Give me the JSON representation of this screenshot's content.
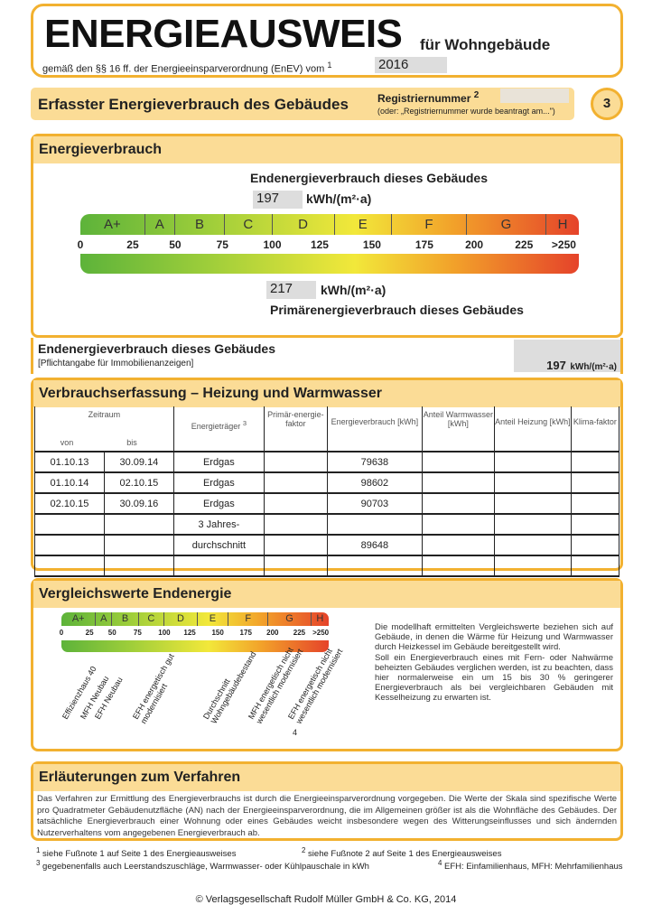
{
  "header": {
    "title": "ENERGIEAUSWEIS",
    "subtitle": "für Wohngebäude",
    "regulation": "gemäß den §§ 16 ff. der Energieeinsparverordnung (EnEV) vom",
    "regulation_sup": "1",
    "year": "2016"
  },
  "bar": {
    "title": "Erfasster Energieverbrauch des Gebäudes",
    "reg_label": "Registriernummer",
    "reg_sup": "2",
    "reg_note": "(oder: „Registriernummer wurde beantragt am...\")",
    "page": "3"
  },
  "energy": {
    "title": "Energieverbrauch",
    "end_label": "Endenergieverbrauch dieses Gebäudes",
    "end_value": "197",
    "unit": "kWh/(m²·a)",
    "primary_value": "217",
    "primary_label": "Primärenergieverbrauch dieses Gebäudes",
    "classes": [
      "A+",
      "A",
      "B",
      "C",
      "D",
      "E",
      "F",
      "G",
      "H"
    ],
    "ticks": [
      "0",
      "25",
      "50",
      "75",
      "100",
      "125",
      "150",
      "175",
      "200",
      "225",
      ">250"
    ]
  },
  "ende": {
    "title": "Endenergieverbrauch dieses Gebäudes",
    "note": "[Pflichtangabe für Immobilienanzeigen]",
    "value": "197",
    "unit": "kWh/(m²·a)"
  },
  "table": {
    "title": "Verbrauchserfassung – Heizung und Warmwasser",
    "headers": {
      "zeitraum": "Zeitraum",
      "von": "von",
      "bis": "bis",
      "traeger": "Energieträger",
      "traeger_sup": "3",
      "primaer": "Primär-energie-faktor",
      "verbrauch": "Energieverbrauch [kWh]",
      "warmwasser": "Anteil Warmwasser [kWh]",
      "heizung": "Anteil Heizung [kWh]",
      "klima": "Klima-faktor"
    },
    "rows": [
      {
        "von": "01.10.13",
        "bis": "30.09.14",
        "traeger": "Erdgas",
        "verbrauch": "79638"
      },
      {
        "von": "01.10.14",
        "bis": "02.10.15",
        "traeger": "Erdgas",
        "verbrauch": "98602"
      },
      {
        "von": "02.10.15",
        "bis": "30.09.16",
        "traeger": "Erdgas",
        "verbrauch": "90703"
      },
      {
        "von": "",
        "bis": "",
        "traeger": "3 Jahres-",
        "verbrauch": ""
      },
      {
        "von": "",
        "bis": "",
        "traeger": "durchschnitt",
        "verbrauch": "89648"
      },
      {
        "von": "",
        "bis": "",
        "traeger": "",
        "verbrauch": ""
      }
    ]
  },
  "vergleich": {
    "title": "Vergleichswerte Endenergie",
    "labels": [
      "Effizienzhaus 40",
      "MFH Neubau",
      "EFH Neubau",
      "EFH energetisch gut modernisiert",
      "Durchschnitt Wohngebäudebestand",
      "MFH energetisch nicht wesentlich modernisiert",
      "EFH energetisch nicht wesentlich modernisiert"
    ],
    "footnote_mark": "4",
    "text": "Die modellhaft ermittelten Vergleichswerte beziehen sich auf Gebäude, in denen die Wärme für Heizung und Warmwasser durch Heizkessel im Gebäude bereitgestellt wird.",
    "text2": "Soll ein Energieverbrauch eines mit Fern- oder Nahwärme beheizten Gebäudes verglichen werden, ist zu beachten, dass hier normalerweise ein um 15 bis 30 % geringerer Energieverbrauch als bei vergleichbaren Gebäuden mit Kesselheizung zu erwarten ist."
  },
  "erl": {
    "title": "Erläuterungen zum Verfahren",
    "text": "Das Verfahren zur Ermittlung des Energieverbrauchs ist durch die Energieeinsparverordnung vorgegeben. Die Werte der Skala sind spezifische Werte pro Quadratmeter Gebäudenutzfläche (AN) nach der Energieeinsparverordnung, die im Allgemeinen größer ist als die Wohnfläche des Gebäudes. Der tatsächliche Energieverbrauch einer Wohnung oder eines Gebäudes weicht insbesondere wegen des Witterungseinflusses und sich ändernden Nutzerverhaltens vom angegebenen Energieverbrauch ab."
  },
  "footnotes": [
    "siehe Fußnote 1 auf Seite 1 des Energieausweises",
    "siehe Fußnote 2 auf Seite 1 des Energieausweises",
    "gegebenenfalls auch Leerstandszuschläge, Warmwasser- oder Kühlpauschale in kWh",
    "EFH: Einfamilienhaus, MFH: Mehrfamilienhaus"
  ],
  "copyright": "© Verlagsgesellschaft Rudolf Müller GmbH & Co. KG, 2014",
  "colors": {
    "accent": "#f2b130",
    "band": "#fbdc96"
  }
}
